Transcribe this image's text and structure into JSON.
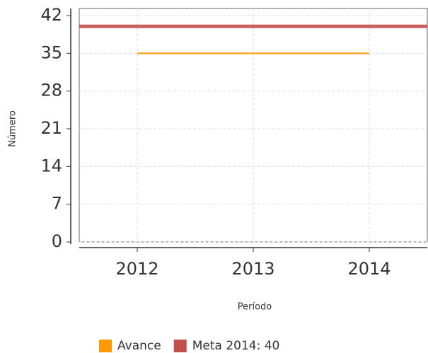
{
  "chart_data": {
    "type": "line",
    "x_label": "Período",
    "y_label": "Número",
    "categories": [
      "2012",
      "2013",
      "2014"
    ],
    "series": [
      {
        "name": "Avance",
        "color": "#ff9900",
        "values": [
          35,
          35,
          35
        ]
      }
    ],
    "target": {
      "name": "Meta 2014: 40",
      "color": "#c0504d",
      "value": 40
    },
    "ylim": [
      0,
      42
    ],
    "yticks": [
      0,
      7,
      14,
      21,
      28,
      35,
      42
    ],
    "grid": true,
    "legend": "bottom"
  }
}
